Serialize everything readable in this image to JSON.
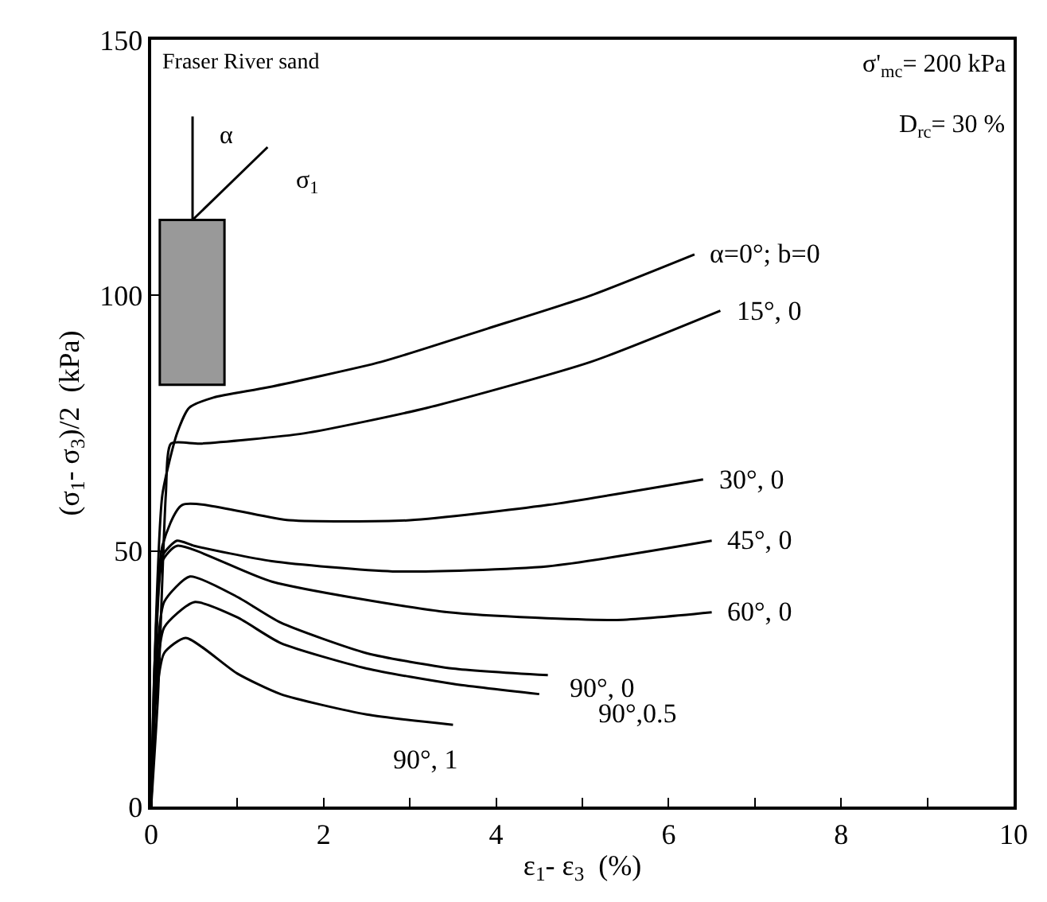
{
  "chart_data": {
    "type": "line",
    "xlabel": "ε$_{1}$- ε$_{3}$  (%)",
    "ylabel": "(σ$_{1}$- σ$_{3}$)/2  (kPa)",
    "xlim": [
      0,
      10
    ],
    "ylim": [
      0,
      150
    ],
    "xticks": [
      0,
      {
        "value": 1,
        "label": null
      },
      2,
      {
        "value": 3,
        "label": null
      },
      4,
      {
        "value": 5,
        "label": null
      },
      6,
      {
        "value": 7,
        "label": null
      },
      8,
      {
        "value": 9,
        "label": null
      },
      10
    ],
    "yticks": [
      0,
      50,
      100,
      150
    ],
    "legend": false,
    "marker": "none",
    "line_style": "solid",
    "annotations": [
      "Fraser River sand",
      "σ'$_{mc}$= 200 kPa",
      "D$_{rc}$= 30 %",
      "α",
      "σ$_{1}$"
    ],
    "series": [
      {
        "name": "α=0°; b=0",
        "color": "#000000",
        "x": [
          0,
          0.04,
          0.13,
          0.3,
          0.44,
          0.72,
          1.35,
          2.67,
          3.9,
          5.1,
          6.3
        ],
        "values": [
          0,
          28,
          61,
          73,
          78,
          80,
          82,
          87,
          93.5,
          100,
          108
        ]
      },
      {
        "name": "15°, 0",
        "color": "#000000",
        "x": [
          0,
          0.08,
          0.17,
          0.23,
          0.57,
          1.77,
          3.2,
          5.1,
          6.6
        ],
        "values": [
          0,
          22,
          61,
          71,
          71,
          73,
          78,
          87,
          97
        ]
      },
      {
        "name": "30°, 0",
        "color": "#000000",
        "x": [
          0,
          0.04,
          0.13,
          0.36,
          1.6,
          3.0,
          4.6,
          6.4
        ],
        "values": [
          0,
          28,
          51,
          59,
          56,
          56,
          59,
          64
        ]
      },
      {
        "name": "45°, 0",
        "color": "#000000",
        "x": [
          0,
          0.04,
          0.13,
          0.3,
          0.5,
          1.4,
          2.8,
          4.6,
          6.5
        ],
        "values": [
          0,
          22,
          49,
          52,
          51,
          48,
          46,
          47,
          52
        ]
      },
      {
        "name": "60°, 0",
        "color": "#000000",
        "x": [
          0,
          0.04,
          0.13,
          0.3,
          1.4,
          3.45,
          5.4,
          6.5
        ],
        "values": [
          0,
          19,
          48,
          51,
          44,
          38,
          36.5,
          38
        ]
      },
      {
        "name": "90°, 0",
        "color": "#000000",
        "x": [
          0,
          0.05,
          0.15,
          0.45,
          1,
          1.5,
          2.5,
          3.5,
          4.6
        ],
        "values": [
          0,
          25,
          40,
          45,
          41,
          36,
          30,
          27,
          25.7
        ]
      },
      {
        "name": "90°,0.5",
        "color": "#000000",
        "x": [
          0,
          0.05,
          0.15,
          0.5,
          1,
          1.5,
          2.5,
          3.5,
          4.5
        ],
        "values": [
          0,
          22,
          35,
          40,
          37,
          32,
          27,
          24,
          22
        ]
      },
      {
        "name": "90°, 1",
        "color": "#000000",
        "x": [
          0,
          0.05,
          0.15,
          0.4,
          1,
          1.5,
          2.5,
          3.5
        ],
        "values": [
          0,
          20,
          30,
          33,
          26,
          22,
          18,
          16
        ]
      }
    ]
  }
}
